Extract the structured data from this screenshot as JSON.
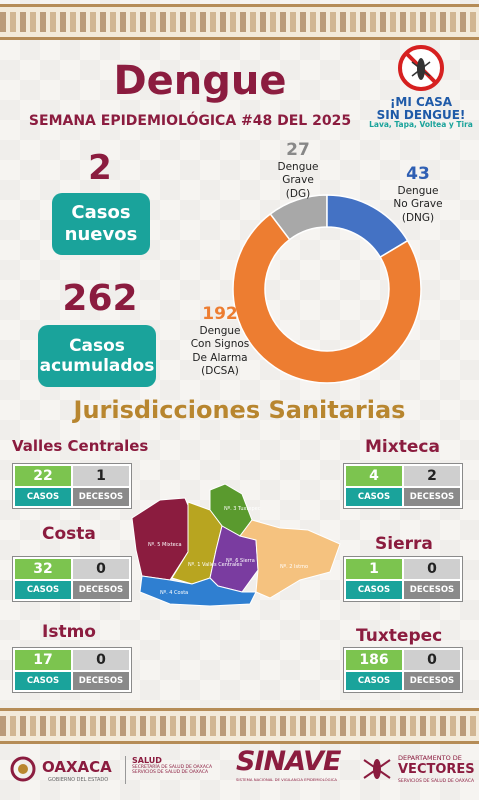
{
  "header": {
    "title": "Dengue",
    "subtitle": "SEMANA EPIDEMIOLÓGICA #48 DEL 2025"
  },
  "campaign": {
    "line1": "¡MI CASA",
    "line2": "SIN DENGUE!",
    "tagline": "Lava, Tapa, Voltea y Tira"
  },
  "summary": {
    "new_cases": "2",
    "new_cases_label_1": "Casos",
    "new_cases_label_2": "nuevos",
    "total_cases": "262",
    "total_cases_label_1": "Casos",
    "total_cases_label_2": "acumulados"
  },
  "chart_data": {
    "type": "pie",
    "style": "donut",
    "slices": [
      {
        "value": 27,
        "label_1": "Dengue",
        "label_2": "Grave",
        "label_3": "(DG)",
        "color": "#a8a8a8"
      },
      {
        "value": 43,
        "label_1": "Dengue",
        "label_2": "No Grave",
        "label_3": "(DNG)",
        "color": "#4472c4"
      },
      {
        "value": 192,
        "label_1": "Dengue",
        "label_2": "Con Signos",
        "label_3": "De Alarma",
        "label_4": "(DCSA)",
        "color": "#ed7d31"
      }
    ]
  },
  "jurisdictions_title": "Jurisdicciones Sanitarias",
  "stat_labels": {
    "cases": "CASOS",
    "deaths": "DECESOS"
  },
  "jurisdictions": [
    {
      "name": "Valles Centrales",
      "cases": "22",
      "deaths": "1"
    },
    {
      "name": "Costa",
      "cases": "32",
      "deaths": "0"
    },
    {
      "name": "Istmo",
      "cases": "17",
      "deaths": "0"
    },
    {
      "name": "Mixteca",
      "cases": "4",
      "deaths": "2"
    },
    {
      "name": "Sierra",
      "cases": "1",
      "deaths": "0"
    },
    {
      "name": "Tuxtepec",
      "cases": "186",
      "deaths": "0"
    }
  ],
  "map": {
    "regions": [
      {
        "label": "Nº. 5 Mixteca",
        "color": "#8b1c3f"
      },
      {
        "label": "Nº. 3 Tuxtepec",
        "color": "#5a9a2e"
      },
      {
        "label": "Nº. 1 Valles Centrales",
        "color": "#b8a520"
      },
      {
        "label": "Nº. 6 Sierra",
        "color": "#7a3ca0"
      },
      {
        "label": "Nº. 2 Istmo",
        "color": "#f5c27f"
      },
      {
        "label": "Nº. 4 Costa",
        "color": "#2f7fd1"
      }
    ]
  },
  "footer": {
    "state": "OAXACA",
    "state_sub": "GOBIERNO DEL ESTADO",
    "health": "SALUD",
    "health_sub_1": "SECRETARÍA DE SALUD DE OAXACA",
    "health_sub_2": "SERVICIOS DE SALUD DE OAXACA",
    "sinave": "SINAVE",
    "sinave_sub": "SISTEMA NACIONAL DE VIGILANCIA EPIDEMIOLÓGICA",
    "dept_1": "DEPARTAMENTO DE",
    "dept_2": "VECTORES",
    "dept_3": "SERVICIOS DE SALUD DE OAXACA"
  }
}
